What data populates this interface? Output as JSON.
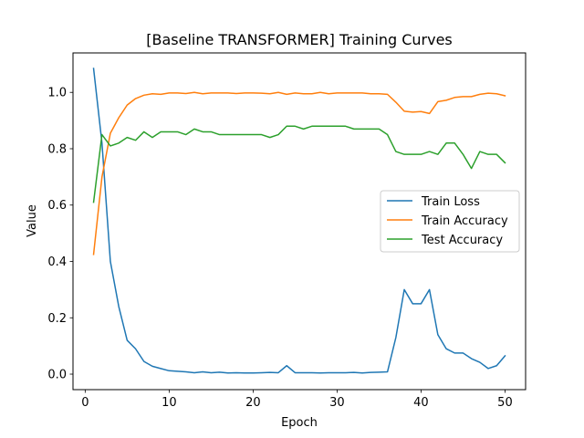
{
  "chart_data": {
    "type": "line",
    "title": "[Baseline TRANSFORMER] Training Curves",
    "xlabel": "Epoch",
    "ylabel": "Value",
    "xlim": [
      -1.45,
      52.45
    ],
    "ylim": [
      -0.055,
      1.14
    ],
    "xticks": [
      0,
      10,
      20,
      30,
      40,
      50
    ],
    "yticks": [
      0.0,
      0.2,
      0.4,
      0.6,
      0.8,
      1.0
    ],
    "grid": false,
    "legend_position": "center-right",
    "x": [
      1,
      2,
      3,
      4,
      5,
      6,
      7,
      8,
      9,
      10,
      11,
      12,
      13,
      14,
      15,
      16,
      17,
      18,
      19,
      20,
      21,
      22,
      23,
      24,
      25,
      26,
      27,
      28,
      29,
      30,
      31,
      32,
      33,
      34,
      35,
      36,
      37,
      38,
      39,
      40,
      41,
      42,
      43,
      44,
      45,
      46,
      47,
      48,
      49,
      50
    ],
    "series": [
      {
        "name": "Train Loss",
        "color": "#1f77b4",
        "values": [
          1.085,
          0.82,
          0.4,
          0.24,
          0.12,
          0.09,
          0.045,
          0.028,
          0.02,
          0.012,
          0.01,
          0.008,
          0.005,
          0.008,
          0.005,
          0.007,
          0.004,
          0.005,
          0.004,
          0.004,
          0.005,
          0.006,
          0.005,
          0.03,
          0.005,
          0.005,
          0.005,
          0.004,
          0.005,
          0.005,
          0.005,
          0.006,
          0.004,
          0.006,
          0.007,
          0.008,
          0.13,
          0.3,
          0.25,
          0.25,
          0.3,
          0.14,
          0.09,
          0.075,
          0.075,
          0.055,
          0.042,
          0.02,
          0.03,
          0.065
        ]
      },
      {
        "name": "Train Accuracy",
        "color": "#ff7f0e",
        "values": [
          0.425,
          0.7,
          0.855,
          0.91,
          0.955,
          0.978,
          0.99,
          0.995,
          0.993,
          0.998,
          0.998,
          0.996,
          1.0,
          0.995,
          0.998,
          0.998,
          0.998,
          0.996,
          0.998,
          0.998,
          0.997,
          0.995,
          1.0,
          0.993,
          0.998,
          0.995,
          0.995,
          1.0,
          0.995,
          0.998,
          0.998,
          0.998,
          0.998,
          0.995,
          0.995,
          0.993,
          0.965,
          0.933,
          0.93,
          0.932,
          0.925,
          0.967,
          0.972,
          0.982,
          0.985,
          0.985,
          0.993,
          0.997,
          0.995,
          0.988
        ]
      },
      {
        "name": "Test Accuracy",
        "color": "#2ca02c",
        "values": [
          0.61,
          0.85,
          0.81,
          0.82,
          0.84,
          0.83,
          0.86,
          0.84,
          0.86,
          0.86,
          0.86,
          0.85,
          0.87,
          0.86,
          0.86,
          0.85,
          0.85,
          0.85,
          0.85,
          0.85,
          0.85,
          0.84,
          0.85,
          0.88,
          0.88,
          0.87,
          0.88,
          0.88,
          0.88,
          0.88,
          0.88,
          0.87,
          0.87,
          0.87,
          0.87,
          0.85,
          0.79,
          0.78,
          0.78,
          0.78,
          0.79,
          0.78,
          0.82,
          0.82,
          0.78,
          0.73,
          0.79,
          0.78,
          0.78,
          0.75
        ]
      }
    ]
  }
}
